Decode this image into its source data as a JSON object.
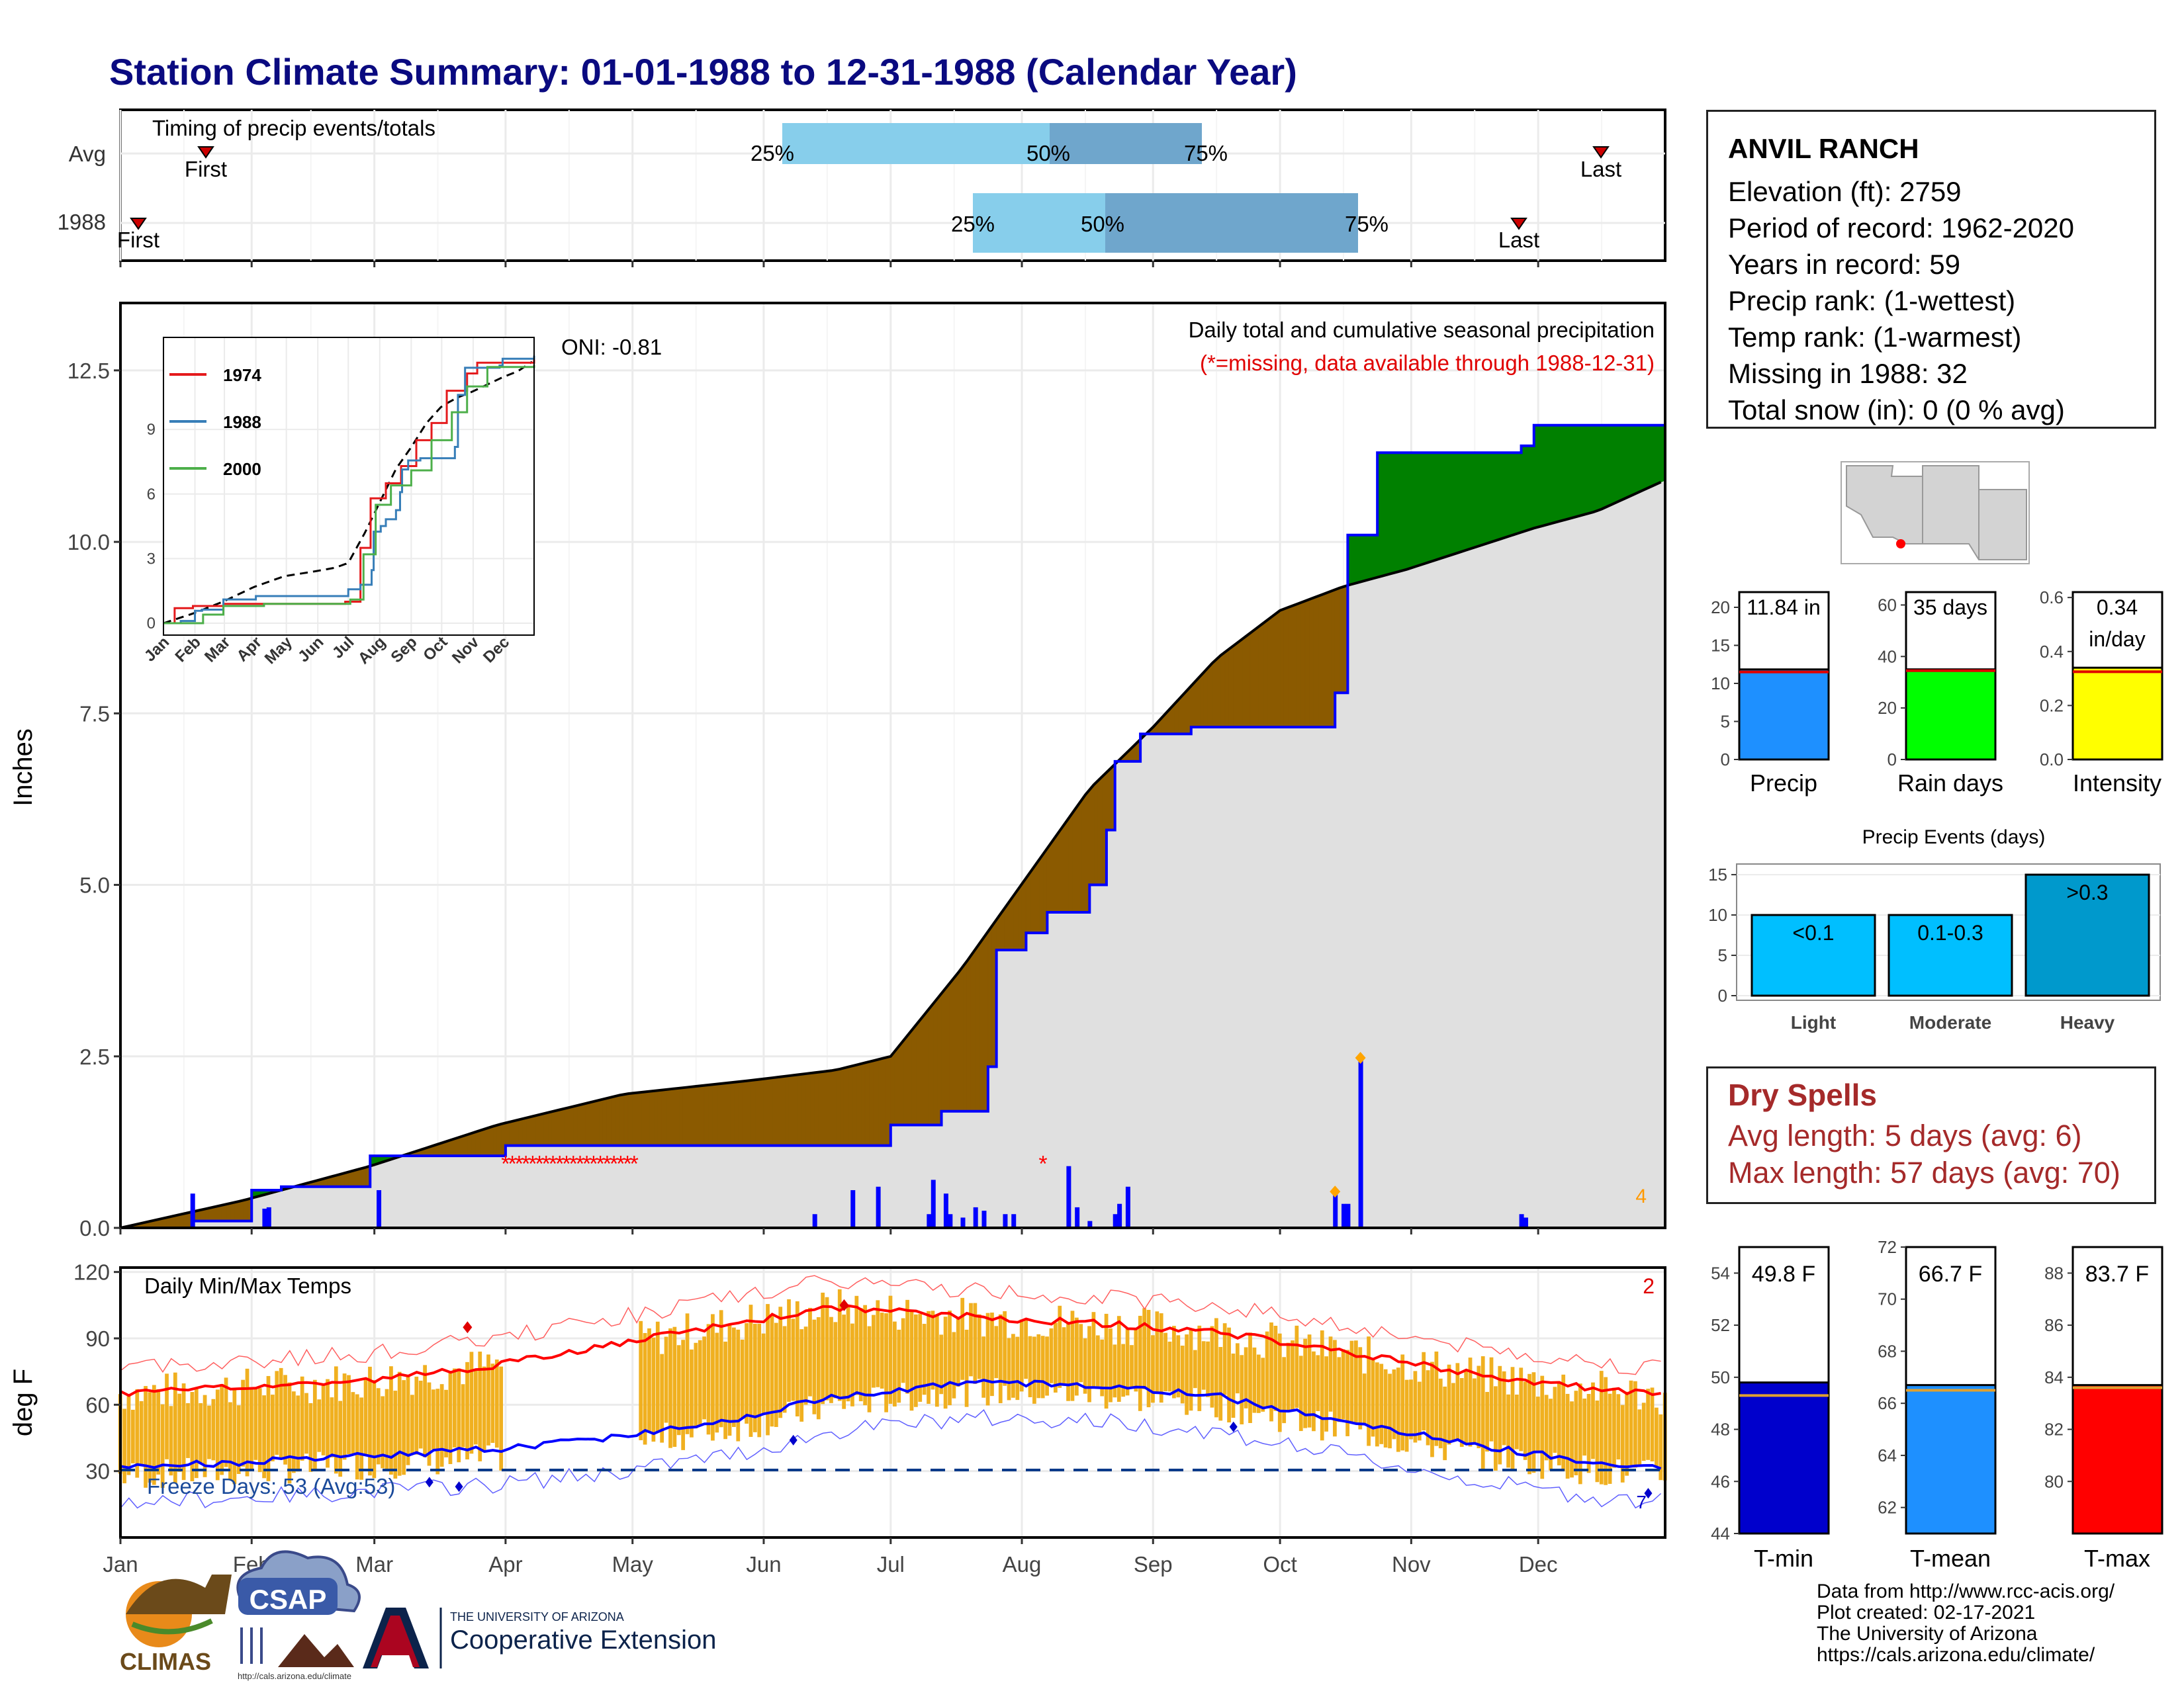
{
  "title": "Station Climate Summary: 01-01-1988 to 12-31-1988 (Calendar Year)",
  "colors": {
    "title": "#0a0a80",
    "above_avg": "#008000",
    "below_avg": "#8b5a00",
    "grey_fill": "#e0e0e0",
    "cumulative_line": "#0000ff",
    "q_light": "#87ceeb",
    "q_dark": "#6fa6cc",
    "tmax_bar": "#f0b020",
    "tmax_avg": "#ff0000",
    "tmin_avg": "#0000ff",
    "tmin_bar": "#0000cc",
    "tmean_bar": "#1e90ff",
    "tmax_box": "#ff0000",
    "precip_bar": "#1e90ff",
    "raindays_bar": "#00ff00",
    "intensity_bar": "#ffff00",
    "events_light": "#00bfff",
    "events_heavy": "#0099cc",
    "dry": "#a52a2a"
  },
  "timing": {
    "label": "Timing of precip events/totals",
    "rows": [
      {
        "label": "Avg",
        "first": "First",
        "last": "Last",
        "q25": "25%",
        "q50": "50%",
        "q75": "75%"
      },
      {
        "label": "1988",
        "first": "First",
        "last": "Last",
        "q25": "25%",
        "q50": "50%",
        "q75": "75%"
      }
    ]
  },
  "precip_panel": {
    "ylabel": "Inches",
    "yticks": [
      "0.0",
      "2.5",
      "5.0",
      "7.5",
      "10.0",
      "12.5"
    ],
    "title_line": "Daily total and cumulative seasonal precipitation",
    "missing_note": "(*=missing, data available through 1988-12-31)",
    "oni": "ONI: -0.81",
    "corner_count": "4"
  },
  "inset": {
    "legend": [
      "1974",
      "1988",
      "2000"
    ],
    "yticks": [
      "0",
      "3",
      "6",
      "9"
    ],
    "xticks": [
      "Jan",
      "Feb",
      "Mar",
      "Apr",
      "May",
      "Jun",
      "Jul",
      "Aug",
      "Sep",
      "Oct",
      "Nov",
      "Dec"
    ]
  },
  "temp_panel": {
    "ylabel": "deg F",
    "title": "Daily Min/Max Temps",
    "yticks": [
      "30",
      "60",
      "90",
      "120"
    ],
    "freeze": "Freeze Days: 53 (Avg:53)",
    "corner_count": "2",
    "corner_count_low": "7"
  },
  "months": [
    "Jan",
    "Feb",
    "Mar",
    "Apr",
    "May",
    "Jun",
    "Jul",
    "Aug",
    "Sep",
    "Oct",
    "Nov",
    "Dec"
  ],
  "station": {
    "name": "ANVIL RANCH",
    "lines": [
      "Elevation (ft): 2759",
      "Period of record: 1962-2020",
      "Years in record: 59",
      "Precip rank:  (1-wettest)",
      "Temp rank:  (1-warmest)",
      "Missing in 1988: 32",
      "Total snow (in): 0 (0 % avg)"
    ]
  },
  "mini_bars": [
    {
      "label": "Precip",
      "value_text": "11.84 in",
      "yticks": [
        "0",
        "5",
        "10",
        "15",
        "20"
      ]
    },
    {
      "label": "Rain days",
      "value_text": "35 days",
      "yticks": [
        "0",
        "20",
        "40",
        "60"
      ]
    },
    {
      "label": "Intensity",
      "value_text": "0.34",
      "value_text2": "in/day",
      "yticks": [
        "0.0",
        "0.2",
        "0.4",
        "0.6"
      ]
    }
  ],
  "events": {
    "title": "Precip Events (days)",
    "yticks": [
      "0",
      "5",
      "10",
      "15"
    ],
    "bars": [
      {
        "label": "Light",
        "text": "<0.1"
      },
      {
        "label": "Moderate",
        "text": "0.1-0.3"
      },
      {
        "label": "Heavy",
        "text": ">0.3"
      }
    ]
  },
  "dry_spells": {
    "title": "Dry Spells",
    "avg": "Avg length: 5 days (avg: 6)",
    "max": "Max length: 57 days (avg: 70)"
  },
  "temp_boxes": [
    {
      "label": "T-min",
      "value_text": "49.8 F",
      "yticks": [
        "44",
        "46",
        "48",
        "50",
        "52",
        "54"
      ]
    },
    {
      "label": "T-mean",
      "value_text": "66.7 F",
      "yticks": [
        "62",
        "64",
        "66",
        "68",
        "70",
        "72"
      ]
    },
    {
      "label": "T-max",
      "value_text": "83.7 F",
      "yticks": [
        "80",
        "82",
        "84",
        "86",
        "88"
      ]
    }
  ],
  "credits": [
    "Data from http://www.rcc-acis.org/",
    "Plot created: 02-17-2021",
    "The University of Arizona",
    "https://cals.arizona.edu/climate/"
  ],
  "logos": {
    "climas": "CLIMAS",
    "csap": "CSAP",
    "csap_url": "http://cals.arizona.edu/climate",
    "ua_line1": "THE UNIVERSITY OF ARIZONA",
    "ua_line2": "Cooperative Extension"
  },
  "chart_data": [
    {
      "type": "line",
      "title": "Daily total and cumulative seasonal precipitation",
      "ylabel": "Inches",
      "ylim": [
        0,
        13
      ],
      "x_unit": "day of year 1988",
      "series": [
        {
          "name": "1988 cumulative",
          "x": [
            1,
            18,
            32,
            39,
            60,
            92,
            183,
            195,
            206,
            208,
            215,
            220,
            230,
            234,
            236,
            242,
            254,
            288,
            291,
            298,
            332,
            335,
            366
          ],
          "y": [
            0,
            0.1,
            0.55,
            0.6,
            1.05,
            1.2,
            1.5,
            1.7,
            2.35,
            4.05,
            4.3,
            4.6,
            5.0,
            5.8,
            6.8,
            7.2,
            7.3,
            7.8,
            10.1,
            11.3,
            11.4,
            11.7,
            11.84
          ]
        },
        {
          "name": "avg cumulative",
          "x": [
            1,
            30,
            60,
            90,
            120,
            150,
            170,
            183,
            200,
            215,
            230,
            245,
            260,
            275,
            290,
            305,
            320,
            335,
            350,
            366
          ],
          "y": [
            0,
            0.4,
            0.9,
            1.5,
            1.95,
            2.15,
            2.3,
            2.5,
            3.8,
            5.1,
            6.4,
            7.3,
            8.3,
            9.0,
            9.35,
            9.6,
            9.9,
            10.2,
            10.45,
            10.9
          ]
        },
        {
          "name": "daily precip",
          "x": [
            18,
            35,
            36,
            62,
            165,
            174,
            180,
            192,
            193,
            196,
            197,
            200,
            203,
            205,
            210,
            212,
            225,
            227,
            230,
            236,
            237,
            239,
            288,
            290,
            291,
            294,
            332,
            333
          ],
          "y": [
            0.5,
            0.28,
            0.3,
            0.55,
            0.2,
            0.55,
            0.6,
            0.2,
            0.7,
            0.5,
            0.2,
            0.15,
            0.3,
            0.25,
            0.2,
            0.2,
            0.9,
            0.3,
            0.1,
            0.2,
            0.35,
            0.6,
            0.5,
            0.35,
            0.35,
            2.45,
            0.2,
            0.15
          ]
        }
      ]
    },
    {
      "type": "line",
      "title": "Daily Min/Max Temps",
      "ylabel": "deg F",
      "ylim": [
        0,
        120
      ],
      "x_unit": "day of year 1988",
      "series": [
        {
          "name": "avg max",
          "x": [
            1,
            30,
            60,
            90,
            120,
            150,
            170,
            200,
            230,
            260,
            290,
            320,
            350,
            366
          ],
          "y": [
            65,
            68,
            71,
            78,
            88,
            98,
            104,
            100,
            97,
            93,
            84,
            74,
            67,
            64
          ]
        },
        {
          "name": "avg min",
          "x": [
            1,
            30,
            60,
            90,
            120,
            150,
            170,
            200,
            230,
            260,
            290,
            320,
            350,
            366
          ],
          "y": [
            32,
            34,
            37,
            40,
            46,
            55,
            64,
            70,
            69,
            64,
            53,
            42,
            34,
            32
          ]
        }
      ]
    },
    {
      "type": "bar",
      "title": "Precip Events (days)",
      "categories": [
        "Light",
        "Moderate",
        "Heavy"
      ],
      "values": [
        10,
        10,
        15
      ],
      "ylim": [
        0,
        15
      ]
    },
    {
      "type": "bar",
      "categories": [
        "Precip",
        "Rain days",
        "Intensity"
      ],
      "values": [
        11.84,
        35,
        0.34
      ]
    },
    {
      "type": "bar",
      "categories": [
        "T-min",
        "T-mean",
        "T-max"
      ],
      "values": [
        49.8,
        66.7,
        83.7
      ]
    }
  ]
}
